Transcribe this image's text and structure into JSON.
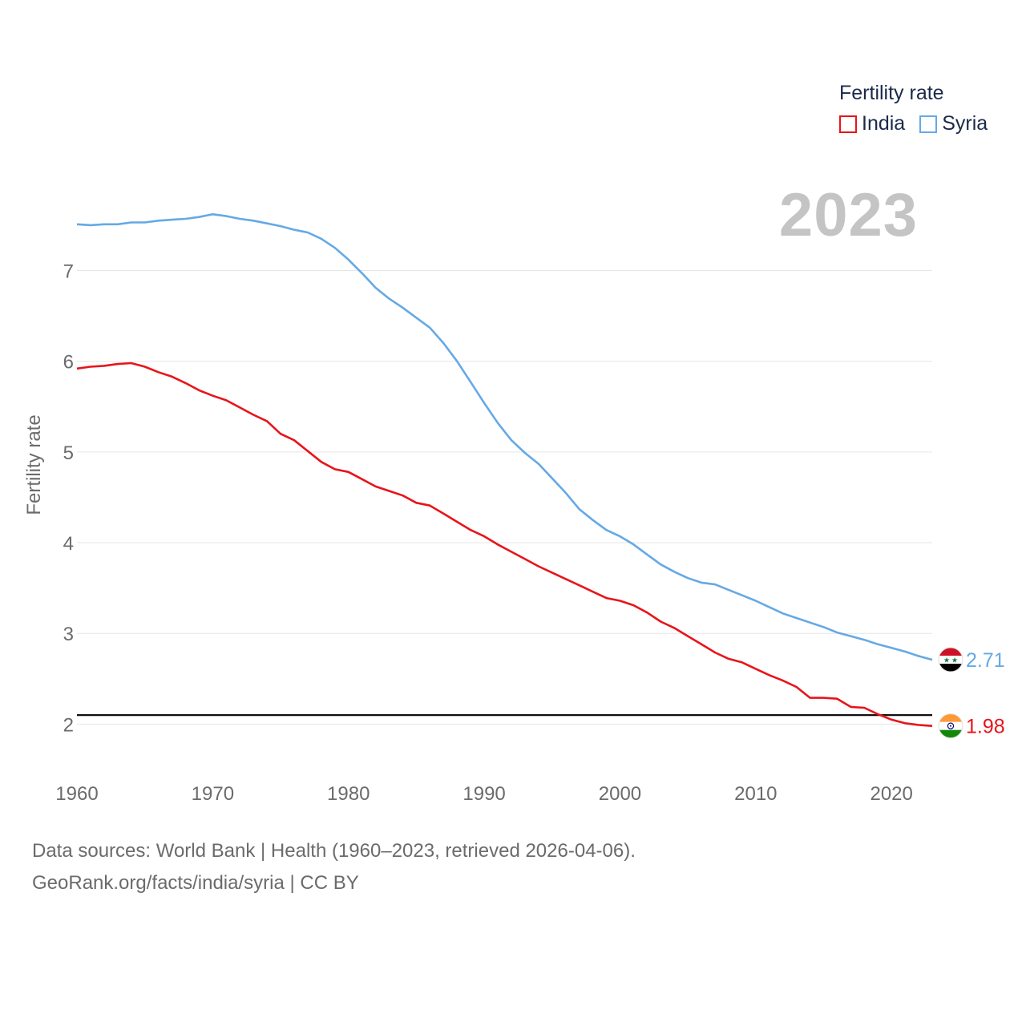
{
  "chart_data": {
    "type": "line",
    "title": "Fertility rate",
    "year_label": "2023",
    "ylabel": "Fertility rate",
    "xlabel": "",
    "xlim": [
      1960,
      2023
    ],
    "ylim": [
      1.5,
      7.95
    ],
    "x_ticks": [
      1960,
      1970,
      1980,
      1990,
      2000,
      2010,
      2020
    ],
    "x_tick_labels": [
      "1960",
      "1970",
      "1980",
      "1990",
      "2000",
      "2010",
      "2020"
    ],
    "y_ticks": [
      2,
      3,
      4,
      5,
      6,
      7
    ],
    "y_tick_labels": [
      "2",
      "3",
      "4",
      "5",
      "6",
      "7"
    ],
    "reference_line": 2.1,
    "x": [
      1960,
      1961,
      1962,
      1963,
      1964,
      1965,
      1966,
      1967,
      1968,
      1969,
      1970,
      1971,
      1972,
      1973,
      1974,
      1975,
      1976,
      1977,
      1978,
      1979,
      1980,
      1981,
      1982,
      1983,
      1984,
      1985,
      1986,
      1987,
      1988,
      1989,
      1990,
      1991,
      1992,
      1993,
      1994,
      1995,
      1996,
      1997,
      1998,
      1999,
      2000,
      2001,
      2002,
      2003,
      2004,
      2005,
      2006,
      2007,
      2008,
      2009,
      2010,
      2011,
      2012,
      2013,
      2014,
      2015,
      2016,
      2017,
      2018,
      2019,
      2020,
      2021,
      2022,
      2023
    ],
    "series": [
      {
        "name": "India",
        "color": "#e8141a",
        "end_label": "1.98",
        "values": [
          5.92,
          5.94,
          5.95,
          5.97,
          5.98,
          5.94,
          5.88,
          5.83,
          5.76,
          5.68,
          5.62,
          5.57,
          5.49,
          5.41,
          5.34,
          5.2,
          5.13,
          5.01,
          4.89,
          4.81,
          4.78,
          4.7,
          4.62,
          4.57,
          4.52,
          4.44,
          4.41,
          4.32,
          4.23,
          4.14,
          4.07,
          3.98,
          3.9,
          3.82,
          3.74,
          3.67,
          3.6,
          3.53,
          3.46,
          3.39,
          3.36,
          3.31,
          3.23,
          3.13,
          3.06,
          2.97,
          2.88,
          2.79,
          2.72,
          2.68,
          2.61,
          2.54,
          2.48,
          2.41,
          2.29,
          2.29,
          2.28,
          2.19,
          2.18,
          2.11,
          2.05,
          2.01,
          1.99,
          1.98
        ]
      },
      {
        "name": "Syria",
        "color": "#65a9e5",
        "end_label": "2.71",
        "values": [
          7.51,
          7.5,
          7.51,
          7.51,
          7.53,
          7.53,
          7.55,
          7.56,
          7.57,
          7.59,
          7.62,
          7.6,
          7.57,
          7.55,
          7.52,
          7.49,
          7.45,
          7.42,
          7.35,
          7.25,
          7.12,
          6.97,
          6.81,
          6.69,
          6.59,
          6.48,
          6.37,
          6.2,
          6.0,
          5.77,
          5.54,
          5.32,
          5.13,
          4.99,
          4.87,
          4.71,
          4.55,
          4.37,
          4.25,
          4.14,
          4.07,
          3.98,
          3.87,
          3.76,
          3.68,
          3.61,
          3.56,
          3.54,
          3.48,
          3.42,
          3.36,
          3.29,
          3.22,
          3.17,
          3.12,
          3.07,
          3.01,
          2.97,
          2.93,
          2.88,
          2.84,
          2.8,
          2.75,
          2.71
        ]
      }
    ]
  },
  "legend": {
    "title": "Fertility rate",
    "items": [
      {
        "label": "India",
        "color": "#e8141a"
      },
      {
        "label": "Syria",
        "color": "#65a9e5"
      }
    ]
  },
  "source": {
    "line1": "Data sources: World Bank | Health (1960–2023, retrieved 2026-04-06).",
    "line2": "GeoRank.org/facts/india/syria | CC BY"
  }
}
